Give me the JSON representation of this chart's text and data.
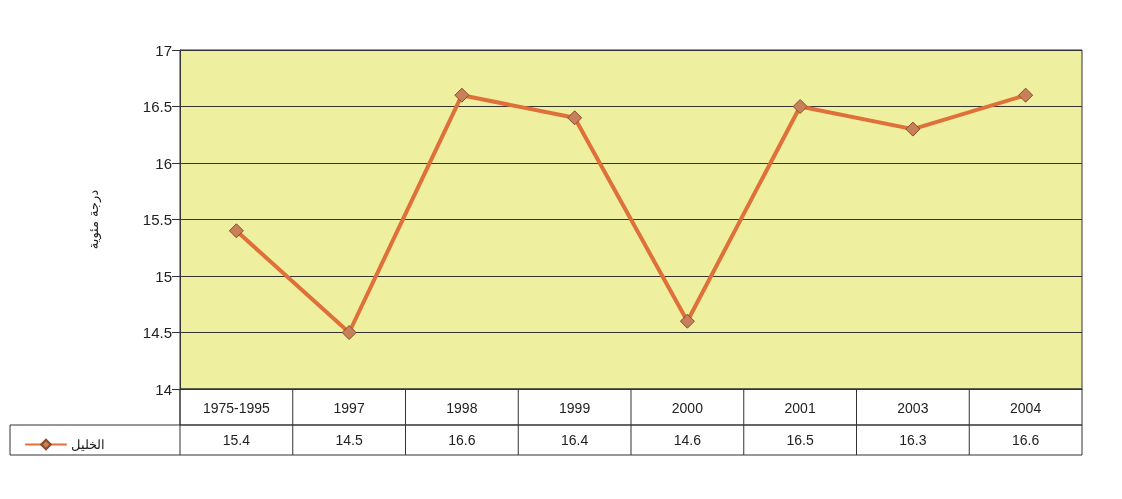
{
  "chart_data": {
    "type": "line",
    "ylabel": "درجة مئوية",
    "categories": [
      "1975-1995",
      "1997",
      "1998",
      "1999",
      "2000",
      "2001",
      "2003",
      "2004"
    ],
    "series": [
      {
        "name": "الخليل",
        "color": "#e0703a",
        "values": [
          15.4,
          14.5,
          16.6,
          16.4,
          14.6,
          16.5,
          16.3,
          16.6
        ]
      }
    ],
    "ylim": [
      14,
      17
    ],
    "yticks": [
      14,
      14.5,
      15,
      15.5,
      16,
      16.5,
      17
    ],
    "grid": "y",
    "legend": "bottom left",
    "marker": "diamond",
    "line_style": "solid",
    "data_labels": true
  }
}
